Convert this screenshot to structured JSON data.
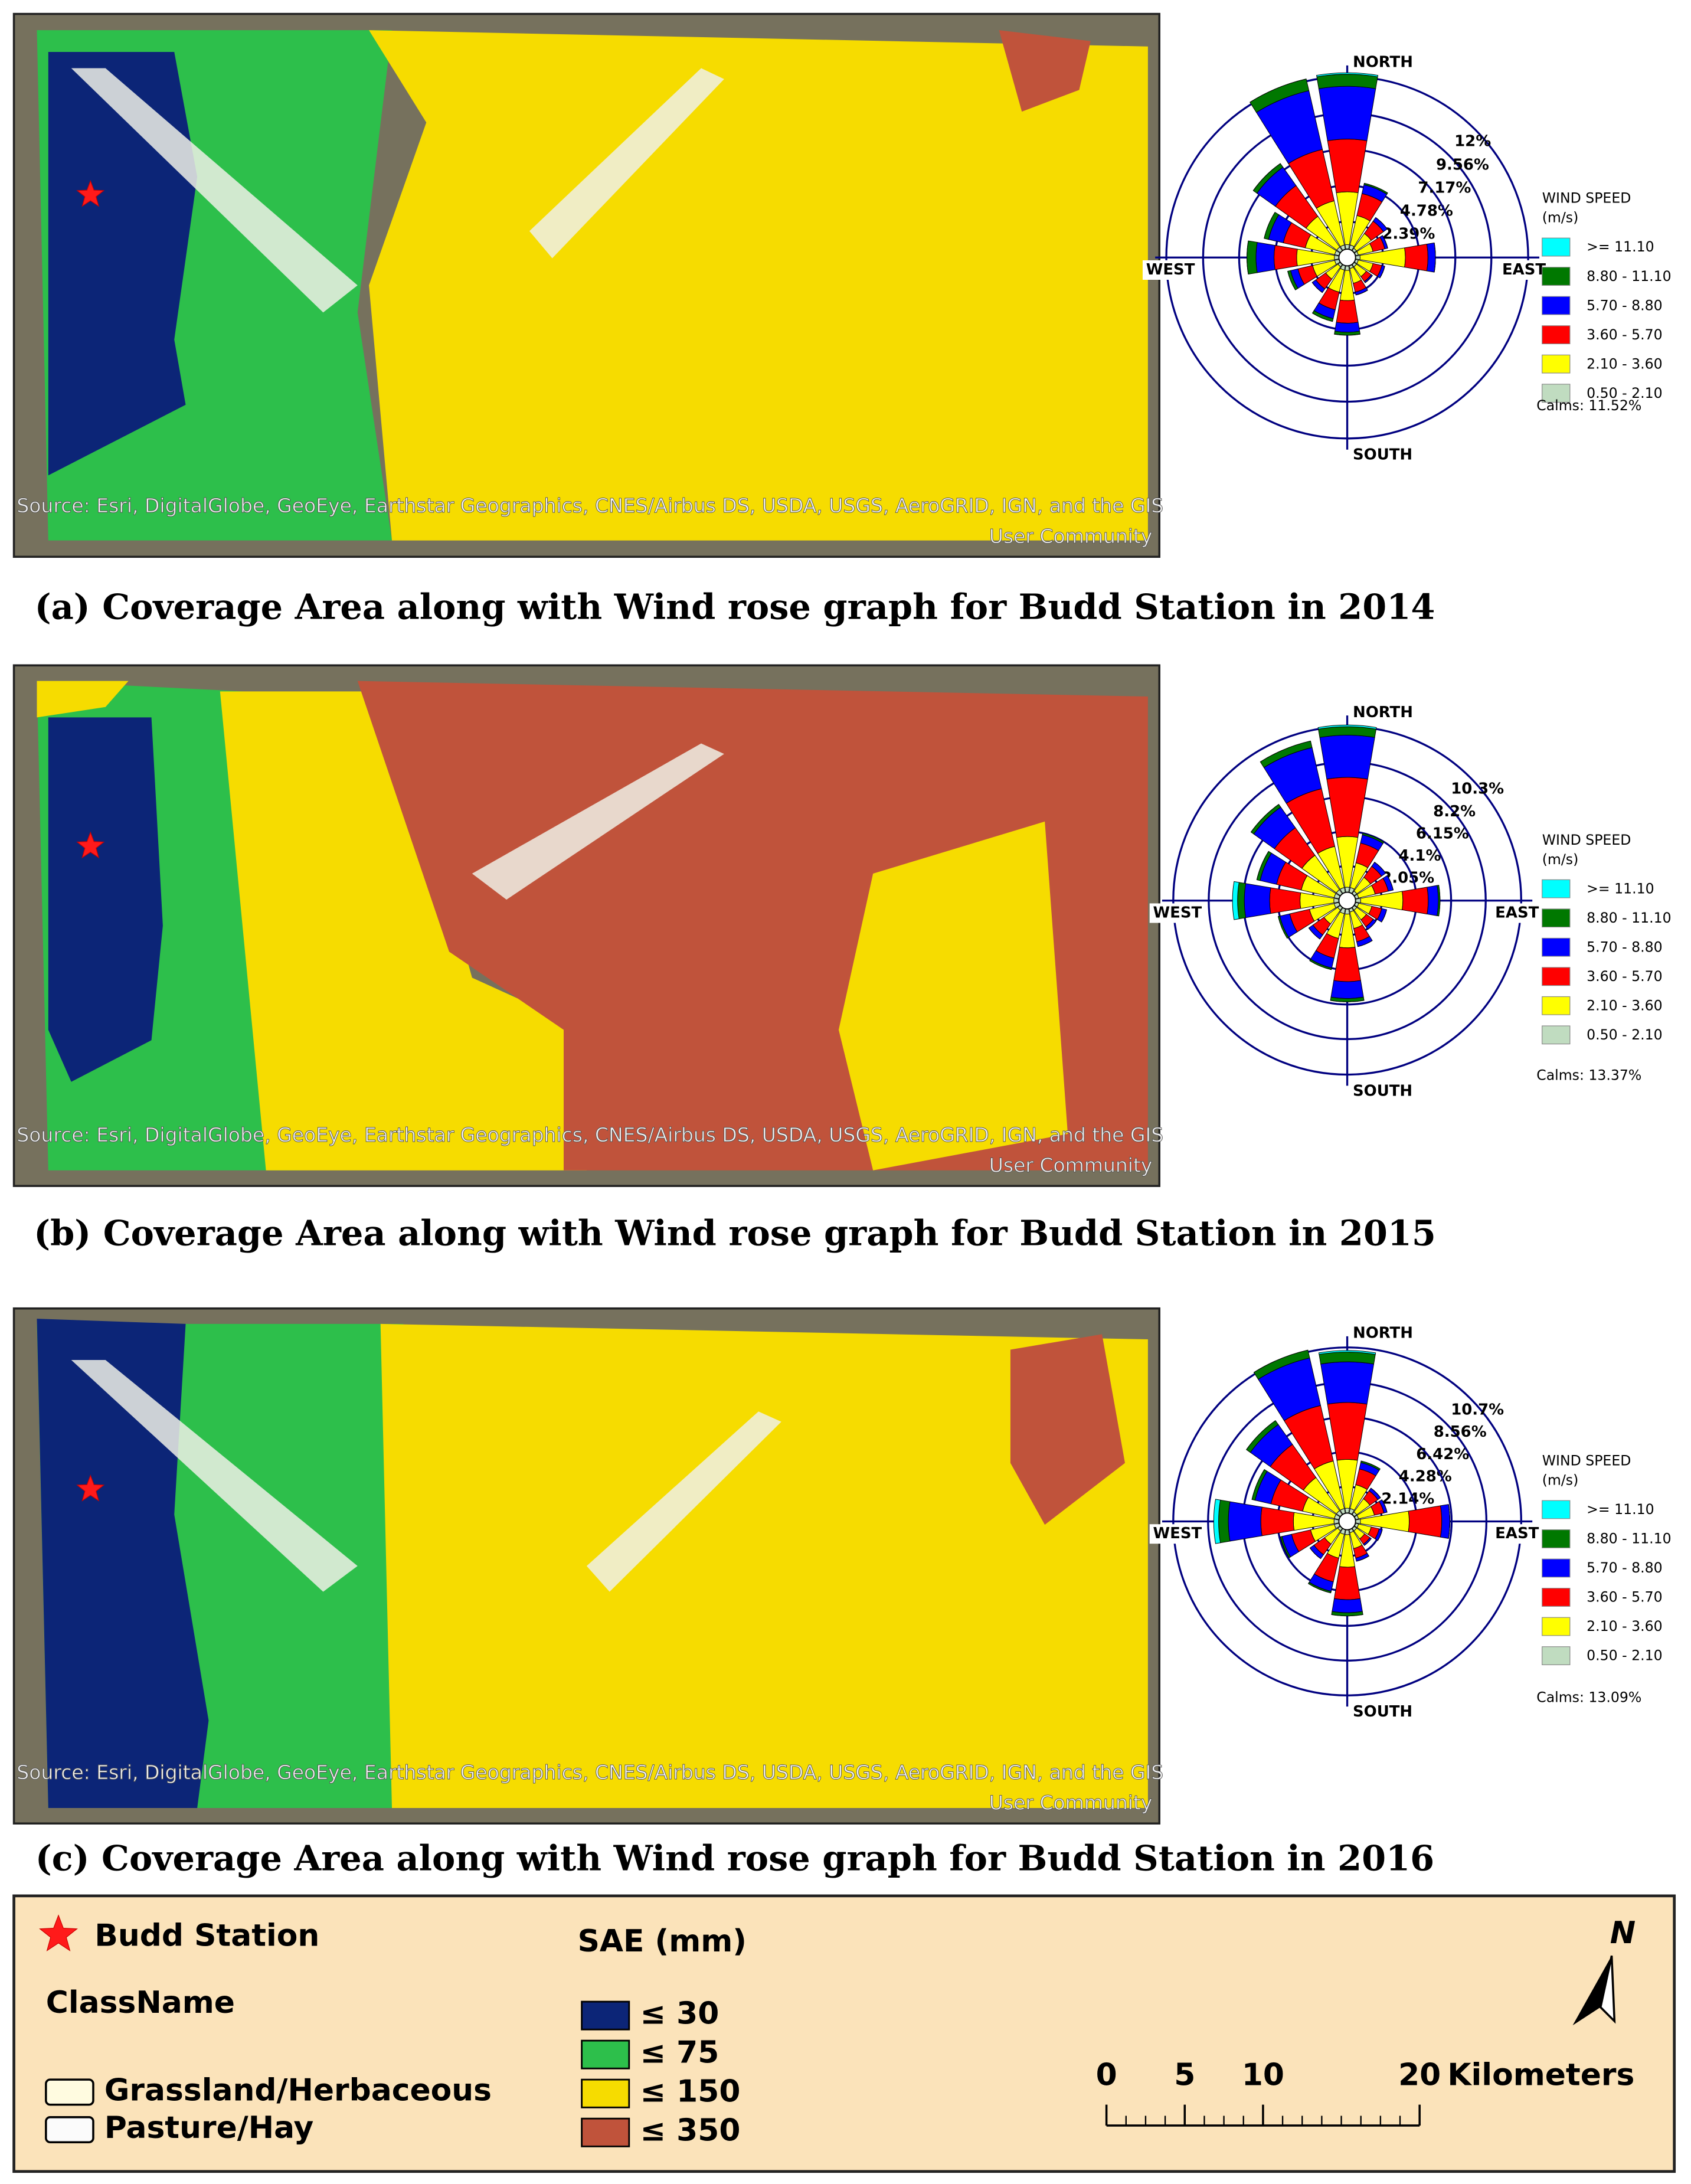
{
  "panels": [
    {
      "caption": "(a) Coverage Area along with Wind rose graph for Budd Station in 2014",
      "map_source": [
        "Source: Esri, DigitalGlobe, GeoEye, Earthstar Geographics, CNES/Airbus DS, USDA, USGS, AeroGRID, IGN, and the GIS",
        "User Community"
      ],
      "chart_data": {
        "type": "windrose",
        "directions": [
          "NORTH",
          null,
          null,
          null,
          "EAST",
          null,
          null,
          null,
          "SOUTH",
          null,
          null,
          null,
          "WEST",
          null,
          null,
          null
        ],
        "ylim": [
          0,
          12
        ],
        "yticks": [
          {
            "value": 2.39,
            "label": "2.39%"
          },
          {
            "value": 4.78,
            "label": "4.78%"
          },
          {
            "value": 7.17,
            "label": "7.17%"
          },
          {
            "value": 9.56,
            "label": "9.56%"
          },
          {
            "value": 12,
            "label": "12%"
          }
        ],
        "legend_title": "WIND SPEED",
        "legend_unit": "(m/s)",
        "calms": "Calms: 11.52%",
        "series": [
          {
            "name": ">= 11.10",
            "color": "#00ffff",
            "values": [
              0.1,
              0,
              0,
              0,
              0,
              0,
              0,
              0,
              0,
              0,
              0,
              0,
              0,
              0,
              0,
              0
            ]
          },
          {
            "name": "8.80 - 11.10",
            "color": "#007800",
            "values": [
              0.8,
              0.1,
              0,
              0,
              0,
              0,
              0,
              0,
              0.2,
              0.2,
              0,
              0.2,
              0.6,
              0.3,
              0.3,
              0.8
            ]
          },
          {
            "name": "5.70 - 8.80",
            "color": "#0000ff",
            "values": [
              3.5,
              0.6,
              0.3,
              0.2,
              0.5,
              0.2,
              0.1,
              0.2,
              0.6,
              0.6,
              0.3,
              0.5,
              1.2,
              1,
              1.5,
              4
            ]
          },
          {
            "name": "3.60 - 5.70",
            "color": "#ff0000",
            "values": [
              3.5,
              1.5,
              1,
              0.8,
              1.5,
              0.6,
              0.4,
              0.6,
              1.5,
              1.2,
              0.8,
              1,
              1.5,
              1.5,
              2.5,
              3.5
            ]
          },
          {
            "name": "2.10 - 3.60",
            "color": "#ffff00",
            "values": [
              3.5,
              2,
              1.2,
              1,
              3,
              1,
              0.8,
              1,
              2,
              1.5,
              1,
              1.5,
              2.5,
              2,
              2.5,
              3
            ]
          },
          {
            "name": "0.50 - 2.10",
            "color": "#c0dcc0",
            "values": [
              0.3,
              0.3,
              0.2,
              0.2,
              0.3,
              0.2,
              0.2,
              0.2,
              0.3,
              0.3,
              0.2,
              0.3,
              0.3,
              0.3,
              0.3,
              0.3
            ]
          }
        ]
      }
    },
    {
      "caption": "(b) Coverage Area along with Wind rose graph for Budd Station in 2015",
      "map_source": [
        "Source: Esri, DigitalGlobe, GeoEye, Earthstar Geographics, CNES/Airbus DS, USDA, USGS, AeroGRID, IGN, and the GIS",
        "User Community"
      ],
      "chart_data": {
        "type": "windrose",
        "directions": [
          "NORTH",
          null,
          null,
          null,
          "EAST",
          null,
          null,
          null,
          "SOUTH",
          null,
          null,
          null,
          "WEST",
          null,
          null,
          null
        ],
        "ylim": [
          0,
          10.3
        ],
        "yticks": [
          {
            "value": 2.05,
            "label": "2.05%"
          },
          {
            "value": 4.1,
            "label": "4.1%"
          },
          {
            "value": 6.15,
            "label": "6.15%"
          },
          {
            "value": 8.2,
            "label": "8.2%"
          },
          {
            "value": 10.3,
            "label": "10.3%"
          }
        ],
        "legend_title": "WIND SPEED",
        "legend_unit": "(m/s)",
        "calms": "Calms: 13.37%",
        "series": [
          {
            "name": ">= 11.10",
            "color": "#00ffff",
            "values": [
              0.1,
              0,
              0,
              0,
              0,
              0,
              0,
              0,
              0,
              0,
              0,
              0,
              0.3,
              0,
              0,
              0
            ]
          },
          {
            "name": "8.80 - 11.10",
            "color": "#007800",
            "values": [
              0.5,
              0.1,
              0,
              0,
              0.1,
              0,
              0,
              0,
              0.2,
              0.1,
              0,
              0.1,
              0.4,
              0.2,
              0.2,
              0.4
            ]
          },
          {
            "name": "5.70 - 8.80",
            "color": "#0000ff",
            "values": [
              2.5,
              0.5,
              0.3,
              0.3,
              0.6,
              0.3,
              0.2,
              0.3,
              1,
              0.6,
              0.3,
              0.6,
              1.5,
              1,
              1.5,
              2.5
            ]
          },
          {
            "name": "3.60 - 5.70",
            "color": "#ff0000",
            "values": [
              3.5,
              1.2,
              0.8,
              0.8,
              1.5,
              0.6,
              0.5,
              0.8,
              2,
              1.2,
              0.8,
              1.2,
              1.8,
              1.5,
              2,
              3.5
            ]
          },
          {
            "name": "2.10 - 3.60",
            "color": "#ffff00",
            "values": [
              3,
              1.5,
              1,
              1,
              2.5,
              0.8,
              0.7,
              1,
              2,
              1.5,
              1,
              1.5,
              2,
              2,
              2.5,
              2.5
            ]
          },
          {
            "name": "0.50 - 2.10",
            "color": "#c0dcc0",
            "values": [
              0.3,
              0.3,
              0.2,
              0.2,
              0.3,
              0.2,
              0.2,
              0.2,
              0.3,
              0.3,
              0.2,
              0.3,
              0.3,
              0.3,
              0.3,
              0.3
            ]
          }
        ]
      }
    },
    {
      "caption": "(c) Coverage Area along with Wind rose graph for Budd Station in 2016",
      "map_source": [
        "Source: Esri, DigitalGlobe, GeoEye, Earthstar Geographics, CNES/Airbus DS, USDA, USGS, AeroGRID, IGN, and the GIS",
        "User Community"
      ],
      "chart_data": {
        "type": "windrose",
        "directions": [
          "NORTH",
          null,
          null,
          null,
          "EAST",
          null,
          null,
          null,
          "SOUTH",
          null,
          null,
          null,
          "WEST",
          null,
          null,
          null
        ],
        "ylim": [
          0,
          10.7
        ],
        "yticks": [
          {
            "value": 2.14,
            "label": "2.14%"
          },
          {
            "value": 4.28,
            "label": "4.28%"
          },
          {
            "value": 6.42,
            "label": "6.42%"
          },
          {
            "value": 8.56,
            "label": "8.56%"
          },
          {
            "value": 10.7,
            "label": "10.7%"
          }
        ],
        "legend_title": "WIND SPEED",
        "legend_unit": "(m/s)",
        "calms": "Calms: 13.09%",
        "series": [
          {
            "name": ">= 11.10",
            "color": "#00ffff",
            "values": [
              0.1,
              0,
              0,
              0,
              0,
              0,
              0,
              0,
              0,
              0,
              0,
              0,
              0.3,
              0,
              0,
              0
            ]
          },
          {
            "name": "8.80 - 11.10",
            "color": "#007800",
            "values": [
              0.6,
              0.1,
              0,
              0,
              0,
              0,
              0,
              0,
              0.2,
              0.1,
              0,
              0.1,
              0.6,
              0.2,
              0.3,
              0.5
            ]
          },
          {
            "name": "5.70 - 8.80",
            "color": "#0000ff",
            "values": [
              2.5,
              0.4,
              0.2,
              0.2,
              0.5,
              0.2,
              0.1,
              0.2,
              0.8,
              0.6,
              0.3,
              0.6,
              2,
              1,
              1.5,
              3
            ]
          },
          {
            "name": "3.60 - 5.70",
            "color": "#ff0000",
            "values": [
              3.5,
              1,
              0.6,
              0.6,
              2,
              0.5,
              0.4,
              0.6,
              2,
              1.5,
              0.8,
              1.2,
              2,
              2,
              2.5,
              3.5
            ]
          },
          {
            "name": "2.10 - 3.60",
            "color": "#ffff00",
            "values": [
              3,
              1.5,
              1,
              1,
              3,
              0.8,
              0.6,
              1,
              2,
              1.5,
              1,
              1.5,
              2.5,
              2,
              2.5,
              3
            ]
          },
          {
            "name": "0.50 - 2.10",
            "color": "#c0dcc0",
            "values": [
              0.3,
              0.3,
              0.2,
              0.2,
              0.3,
              0.2,
              0.2,
              0.2,
              0.3,
              0.3,
              0.2,
              0.3,
              0.3,
              0.3,
              0.3,
              0.3
            ]
          }
        ]
      }
    }
  ],
  "legend": {
    "station": "Budd Station",
    "classname_title": "ClassName",
    "classnames": [
      "Grassland/Herbaceous",
      "Pasture/Hay"
    ],
    "sae_title": "SAE (mm)",
    "sae_classes": [
      {
        "label": "≤ 30",
        "color": "#0c2577"
      },
      {
        "label": "≤ 75",
        "color": "#2dbf4b"
      },
      {
        "label": "≤ 150",
        "color": "#f6dc00"
      },
      {
        "label": "≤ 350",
        "color": "#c0533b"
      }
    ],
    "scale": {
      "xlim": [
        0,
        20
      ],
      "ticks": [
        0,
        5,
        10,
        20
      ],
      "unit": "Kilometers"
    },
    "north": "N"
  }
}
